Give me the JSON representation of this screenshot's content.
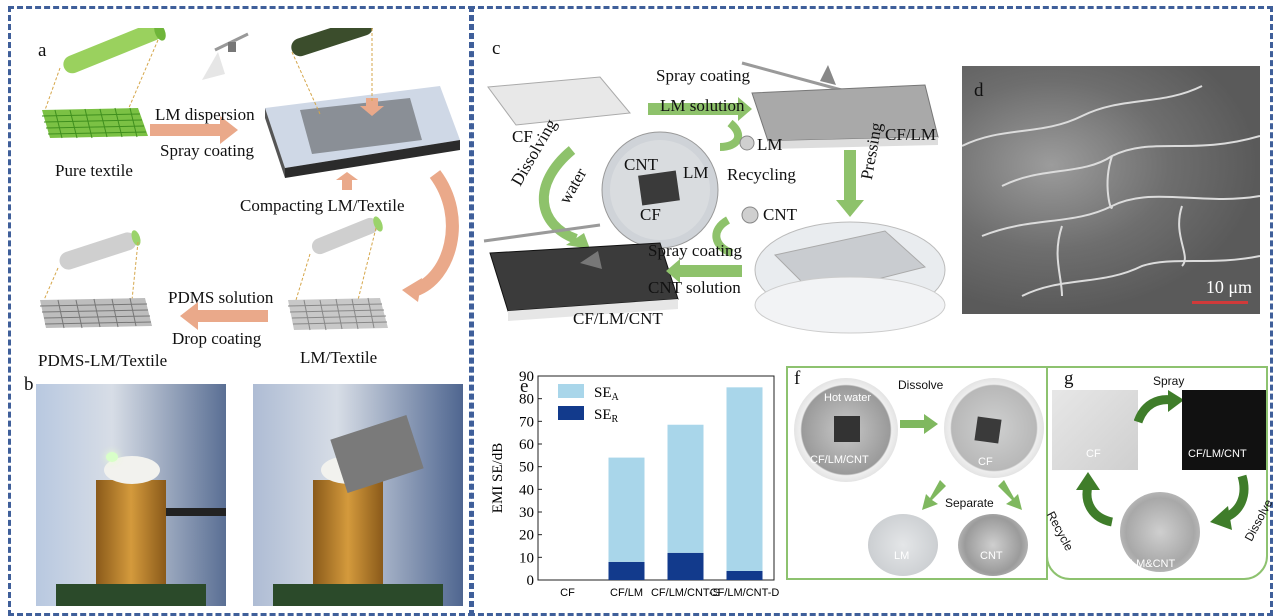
{
  "panels": {
    "a": {
      "letter": "a",
      "labels": {
        "pure_textile": "Pure textile",
        "lm_dispersion": "LM dispersion",
        "spray_coating": "Spray coating",
        "compacting": "Compacting LM/Textile",
        "pdms_solution": "PDMS solution",
        "drop_coating": "Drop coating",
        "pdms_lm_textile": "PDMS-LM/Textile",
        "lm_textile": "LM/Textile"
      }
    },
    "b": {
      "letter": "b"
    },
    "c": {
      "letter": "c",
      "labels": {
        "spray_coating_top": "Spray coating",
        "lm_solution": "LM solution",
        "cf": "CF",
        "lm": "LM",
        "cf_lm": "CF/LM",
        "cnt_dish": "CNT",
        "lm_dish": "LM",
        "cf_dish": "CF",
        "recycling": "Recycling",
        "dissolving": "Dissolving",
        "water": "water",
        "cnt": "CNT",
        "pressing": "Pressing",
        "spray_coating_bottom": "Spray coating",
        "cnt_solution": "CNT solution",
        "cf_lm_cnt": "CF/LM/CNT"
      }
    },
    "d": {
      "letter": "d",
      "scale_bar": "10 μm"
    },
    "e": {
      "letter": "e"
    },
    "f": {
      "letter": "f",
      "labels": {
        "hot_water": "Hot water",
        "dissolve": "Dissolve",
        "cf_lm_cnt": "CF/LM/CNT",
        "cf": "CF",
        "separate": "Separate",
        "lm": "LM",
        "cnt": "CNT"
      }
    },
    "g": {
      "letter": "g",
      "labels": {
        "spray": "Spray",
        "cf": "CF",
        "cf_lm_cnt": "CF/LM/CNT",
        "dissolve": "Dissolve",
        "lm_cnt": "LM&CNT",
        "recycle": "Recycle"
      }
    }
  },
  "chart_data": {
    "type": "bar",
    "stacked": true,
    "categories": [
      "CF",
      "CF/LM",
      "CF/LM/CNT-S",
      "CF/LM/CNT-D"
    ],
    "series": [
      {
        "name": "SE_R",
        "display_base": "SE",
        "display_sub": "R",
        "color": "#123a8c",
        "values": [
          0,
          8,
          12,
          4
        ]
      },
      {
        "name": "SE_A",
        "display_base": "SE",
        "display_sub": "A",
        "color": "#a9d6ea",
        "values": [
          0,
          46,
          56.5,
          81
        ]
      }
    ],
    "ylabel": "EMI SE/dB",
    "ylim": [
      0,
      90
    ],
    "yticks": [
      "0",
      "10",
      "20",
      "30",
      "40",
      "50",
      "60",
      "70",
      "80",
      "90"
    ],
    "grid": false,
    "legend": "top-center"
  }
}
